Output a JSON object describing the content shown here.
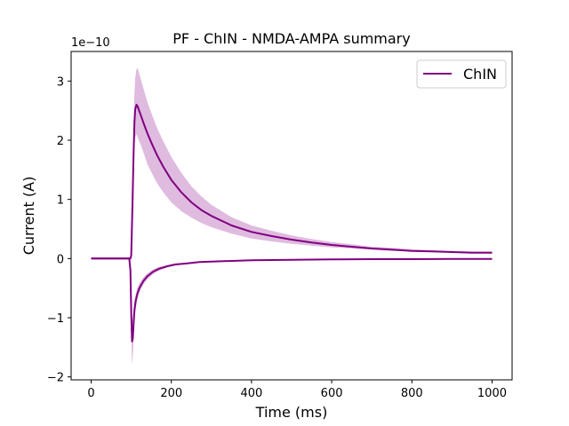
{
  "chart_data": {
    "type": "line",
    "title": "PF - ChIN - NMDA-AMPA summary",
    "xlabel": "Time (ms)",
    "ylabel": "Current (A)",
    "y_scale_label": "1e−10",
    "xlim": [
      -50,
      1050
    ],
    "ylim": [
      -2.05,
      3.5
    ],
    "x_ticks": [
      0,
      200,
      400,
      600,
      800,
      1000
    ],
    "x_tick_labels": [
      "0",
      "200",
      "400",
      "600",
      "800",
      "1000"
    ],
    "y_ticks": [
      -2,
      -1,
      0,
      1,
      2,
      3
    ],
    "y_tick_labels": [
      "−2",
      "−1",
      "0",
      "1",
      "2",
      "3"
    ],
    "grid": false,
    "legend_position": "top-right",
    "legend_entries": [
      "ChIN"
    ],
    "line_color": "#800080",
    "band_color": "#dcb4dc",
    "series": [
      {
        "name": "ChIN",
        "role": "NMDA (positive trace)",
        "x": [
          0,
          98,
          100,
          103,
          106,
          108,
          110,
          113,
          116,
          120,
          125,
          130,
          140,
          150,
          165,
          180,
          200,
          225,
          250,
          275,
          300,
          350,
          400,
          450,
          500,
          550,
          600,
          650,
          700,
          750,
          800,
          850,
          900,
          950,
          1000
        ],
        "y": [
          0.0,
          0.0,
          0.05,
          0.9,
          1.8,
          2.3,
          2.52,
          2.6,
          2.57,
          2.49,
          2.4,
          2.3,
          2.12,
          1.96,
          1.74,
          1.55,
          1.33,
          1.12,
          0.95,
          0.82,
          0.72,
          0.56,
          0.45,
          0.38,
          0.32,
          0.27,
          0.23,
          0.2,
          0.17,
          0.15,
          0.13,
          0.12,
          0.11,
          0.1,
          0.1
        ],
        "band_low": [
          0.0,
          0.0,
          0.03,
          0.7,
          1.5,
          1.9,
          2.05,
          2.1,
          2.05,
          1.98,
          1.9,
          1.8,
          1.6,
          1.46,
          1.27,
          1.12,
          0.95,
          0.8,
          0.69,
          0.6,
          0.53,
          0.42,
          0.34,
          0.29,
          0.25,
          0.22,
          0.19,
          0.17,
          0.15,
          0.13,
          0.12,
          0.11,
          0.1,
          0.09,
          0.09
        ],
        "band_high": [
          0.0,
          0.0,
          0.07,
          1.2,
          2.2,
          2.8,
          3.05,
          3.2,
          3.22,
          3.12,
          3.0,
          2.88,
          2.65,
          2.46,
          2.2,
          1.98,
          1.72,
          1.45,
          1.22,
          1.05,
          0.91,
          0.7,
          0.56,
          0.47,
          0.39,
          0.33,
          0.28,
          0.24,
          0.2,
          0.18,
          0.16,
          0.14,
          0.13,
          0.12,
          0.12
        ]
      },
      {
        "name": "ChIN",
        "role": "AMPA (negative trace)",
        "x": [
          0,
          95,
          98,
          100,
          102,
          104,
          106,
          108,
          111,
          115,
          120,
          130,
          140,
          155,
          170,
          190,
          210,
          240,
          270,
          300,
          350,
          400,
          500,
          600,
          700,
          800,
          900,
          1000
        ],
        "y": [
          0.0,
          0.0,
          -0.2,
          -0.9,
          -1.4,
          -1.35,
          -1.1,
          -0.88,
          -0.72,
          -0.6,
          -0.5,
          -0.38,
          -0.3,
          -0.22,
          -0.17,
          -0.13,
          -0.1,
          -0.08,
          -0.06,
          -0.05,
          -0.04,
          -0.03,
          -0.02,
          -0.015,
          -0.01,
          -0.01,
          -0.005,
          -0.005
        ],
        "band_low": [
          0.0,
          0.0,
          -0.3,
          -1.2,
          -1.8,
          -1.65,
          -1.35,
          -1.05,
          -0.85,
          -0.7,
          -0.58,
          -0.44,
          -0.35,
          -0.26,
          -0.2,
          -0.15,
          -0.12,
          -0.09,
          -0.07,
          -0.06,
          -0.05,
          -0.04,
          -0.03,
          -0.02,
          -0.015,
          -0.012,
          -0.01,
          -0.01
        ],
        "band_high": [
          0.0,
          0.0,
          -0.1,
          -0.6,
          -1.0,
          -1.05,
          -0.85,
          -0.7,
          -0.6,
          -0.5,
          -0.42,
          -0.32,
          -0.25,
          -0.18,
          -0.14,
          -0.11,
          -0.08,
          -0.07,
          -0.05,
          -0.04,
          -0.03,
          -0.02,
          -0.01,
          -0.01,
          -0.005,
          -0.005,
          0.0,
          0.0
        ]
      }
    ]
  }
}
